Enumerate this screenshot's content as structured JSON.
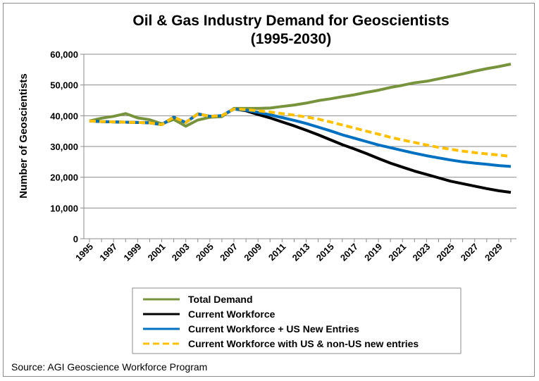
{
  "chart_data": {
    "type": "line",
    "title": "Oil & Gas Industry Demand for Geoscientists",
    "subtitle": "(1995-2030)",
    "xlabel": "",
    "ylabel": "Number of Geoscientists",
    "xlim": [
      1995,
      2030
    ],
    "ylim": [
      0,
      60000
    ],
    "yticks": [
      "0",
      "10,000",
      "20,000",
      "30,000",
      "40,000",
      "50,000",
      "60,000"
    ],
    "xtick_labels": [
      "1995",
      "1997",
      "1999",
      "2001",
      "2003",
      "2005",
      "2007",
      "2009",
      "2011",
      "2013",
      "2015",
      "2017",
      "2019",
      "2021",
      "2023",
      "2025",
      "2027",
      "2029"
    ],
    "grid": "horizontal",
    "legend_position": "bottom",
    "x": [
      1995,
      1996,
      1997,
      1998,
      1999,
      2000,
      2001,
      2002,
      2003,
      2004,
      2005,
      2006,
      2007,
      2008,
      2009,
      2010,
      2011,
      2012,
      2013,
      2014,
      2015,
      2016,
      2017,
      2018,
      2019,
      2020,
      2021,
      2022,
      2023,
      2024,
      2025,
      2026,
      2027,
      2028,
      2029,
      2030
    ],
    "series": [
      {
        "name": "Total Demand",
        "color": "#77933c",
        "dash": false,
        "values": [
          38300,
          39200,
          39800,
          40700,
          39300,
          38700,
          37400,
          38800,
          36600,
          38600,
          39500,
          39700,
          42400,
          42400,
          42400,
          42500,
          43000,
          43500,
          44100,
          44900,
          45500,
          46200,
          46800,
          47600,
          48300,
          49200,
          49900,
          50700,
          51200,
          52000,
          52800,
          53600,
          54500,
          55300,
          56000,
          56800
        ]
      },
      {
        "name": "Current Workforce",
        "color": "#000000",
        "dash": false,
        "values": [
          38300,
          38100,
          38000,
          37900,
          37800,
          37700,
          37100,
          39500,
          37800,
          40600,
          39800,
          40000,
          42200,
          41600,
          40400,
          39300,
          38000,
          36700,
          35300,
          33800,
          32200,
          30600,
          29200,
          27700,
          26100,
          24600,
          23300,
          22000,
          20900,
          19800,
          18700,
          17900,
          17100,
          16300,
          15600,
          15100
        ]
      },
      {
        "name": "Current Workforce + US New Entries",
        "color": "#0070c0",
        "dash": false,
        "values": [
          38300,
          38100,
          38000,
          37900,
          37800,
          37700,
          37100,
          39500,
          37800,
          40600,
          39800,
          40000,
          42200,
          41800,
          41100,
          40300,
          39400,
          38500,
          37500,
          36300,
          35100,
          33800,
          32700,
          31600,
          30500,
          29600,
          28700,
          27800,
          27000,
          26300,
          25600,
          25000,
          24600,
          24200,
          23800,
          23500
        ]
      },
      {
        "name": "Current Workforce with US & non-US  new entries",
        "color": "#ffc000",
        "dash": true,
        "values": [
          38300,
          38100,
          38000,
          37900,
          37800,
          37700,
          37100,
          39500,
          37800,
          40600,
          39800,
          40000,
          42200,
          42000,
          41600,
          41200,
          40700,
          40200,
          39600,
          38900,
          38000,
          37000,
          36000,
          35000,
          34000,
          33000,
          32100,
          31300,
          30500,
          29700,
          29100,
          28500,
          28000,
          27600,
          27200,
          26800
        ]
      }
    ]
  },
  "source": "Source: AGI Geoscience Workforce Program"
}
